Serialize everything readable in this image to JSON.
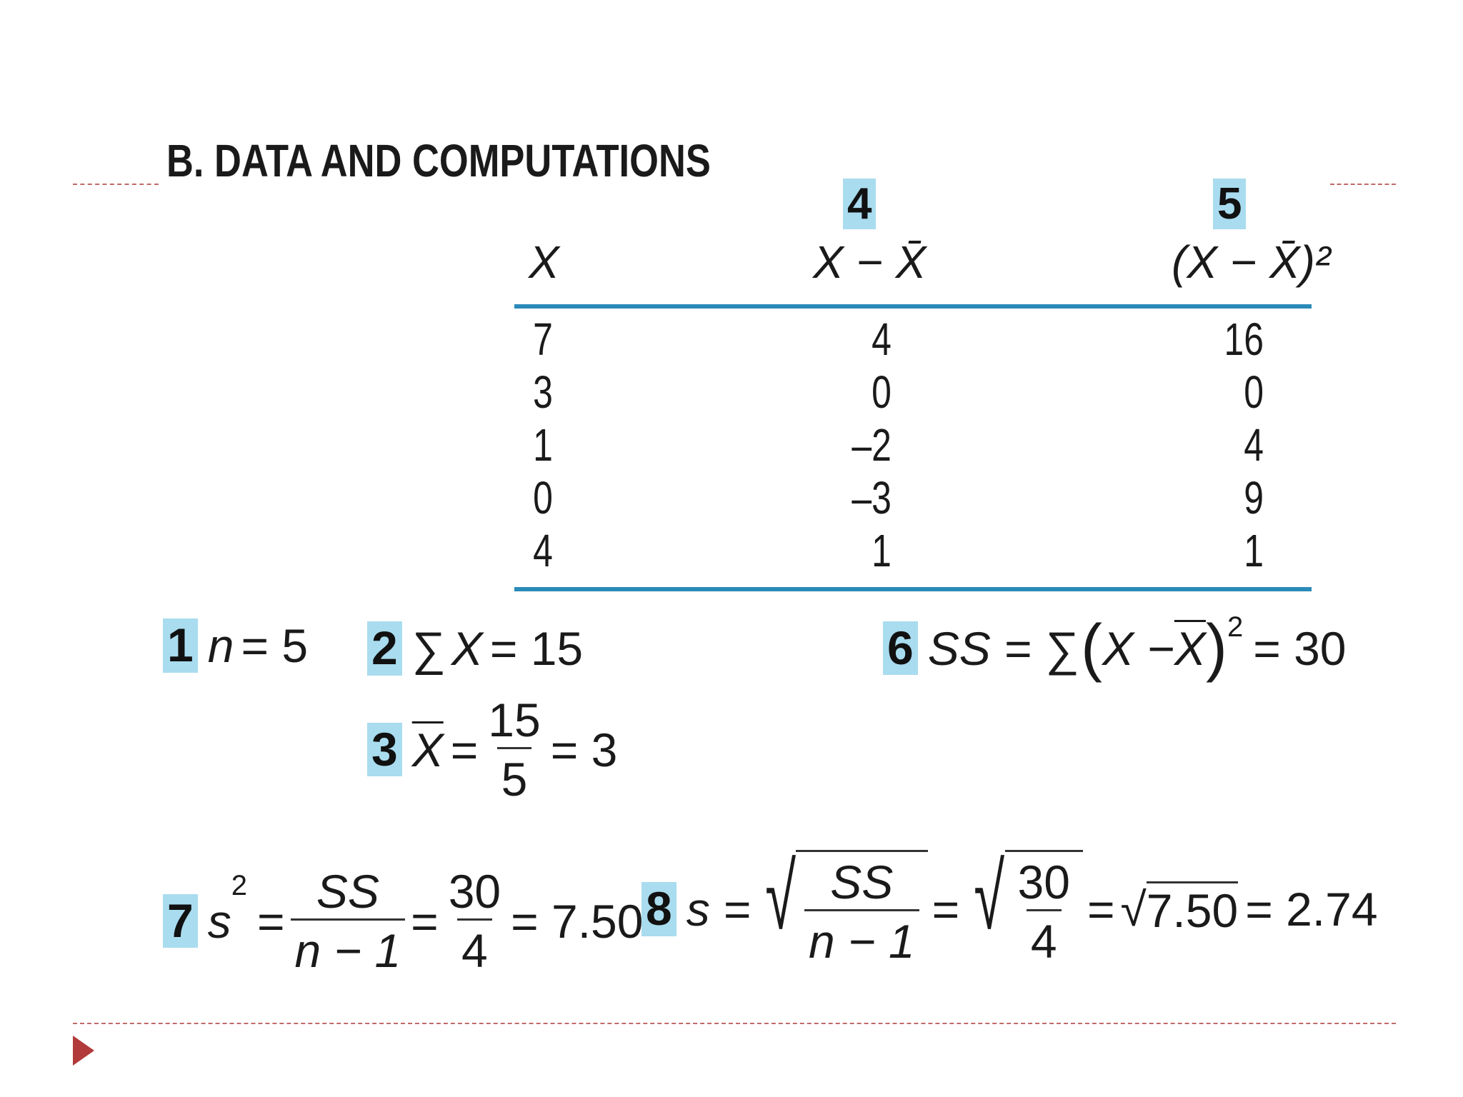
{
  "title": "B. DATA AND COMPUTATIONS",
  "steps": {
    "four": "4",
    "five": "5",
    "one": "1",
    "two": "2",
    "three": "3",
    "six": "6",
    "seven": "7",
    "eight": "8"
  },
  "table": {
    "headers": [
      "X",
      "X − X̄",
      "(X − X̄)²"
    ],
    "x": [
      "7",
      "3",
      "1",
      "0",
      "4"
    ],
    "dev": [
      "4",
      "0",
      "–2",
      "–3",
      "1"
    ],
    "sq": [
      "16",
      "0",
      "4",
      "9",
      "1"
    ]
  },
  "formulas": {
    "n": {
      "var": "n",
      "rhs": "= 5"
    },
    "sumx": {
      "sym": "∑",
      "var": "X",
      "rhs": "= 15"
    },
    "mean": {
      "var": "X",
      "eq": "=",
      "num": "15",
      "den": "5",
      "rhs": "= 3"
    },
    "ss": {
      "lhs": "SS = ∑",
      "open": "(",
      "inner_a": "X − ",
      "inner_b": "X",
      "close": ")",
      "exp": "2",
      "rhs": "= 30"
    },
    "var": {
      "lhs": "s",
      "exp": "2",
      "eq1": "=",
      "num1": "SS",
      "den1": "n − 1",
      "eq2": "=",
      "num2": "30",
      "den2": "4",
      "rhs": "= 7.50"
    },
    "sd": {
      "lhs": "s =",
      "num1": "SS",
      "den1": "n − 1",
      "eq2": "=",
      "num2": "30",
      "den2": "4",
      "eq3": "=",
      "root": "7.50",
      "rhs": "= 2.74"
    }
  }
}
